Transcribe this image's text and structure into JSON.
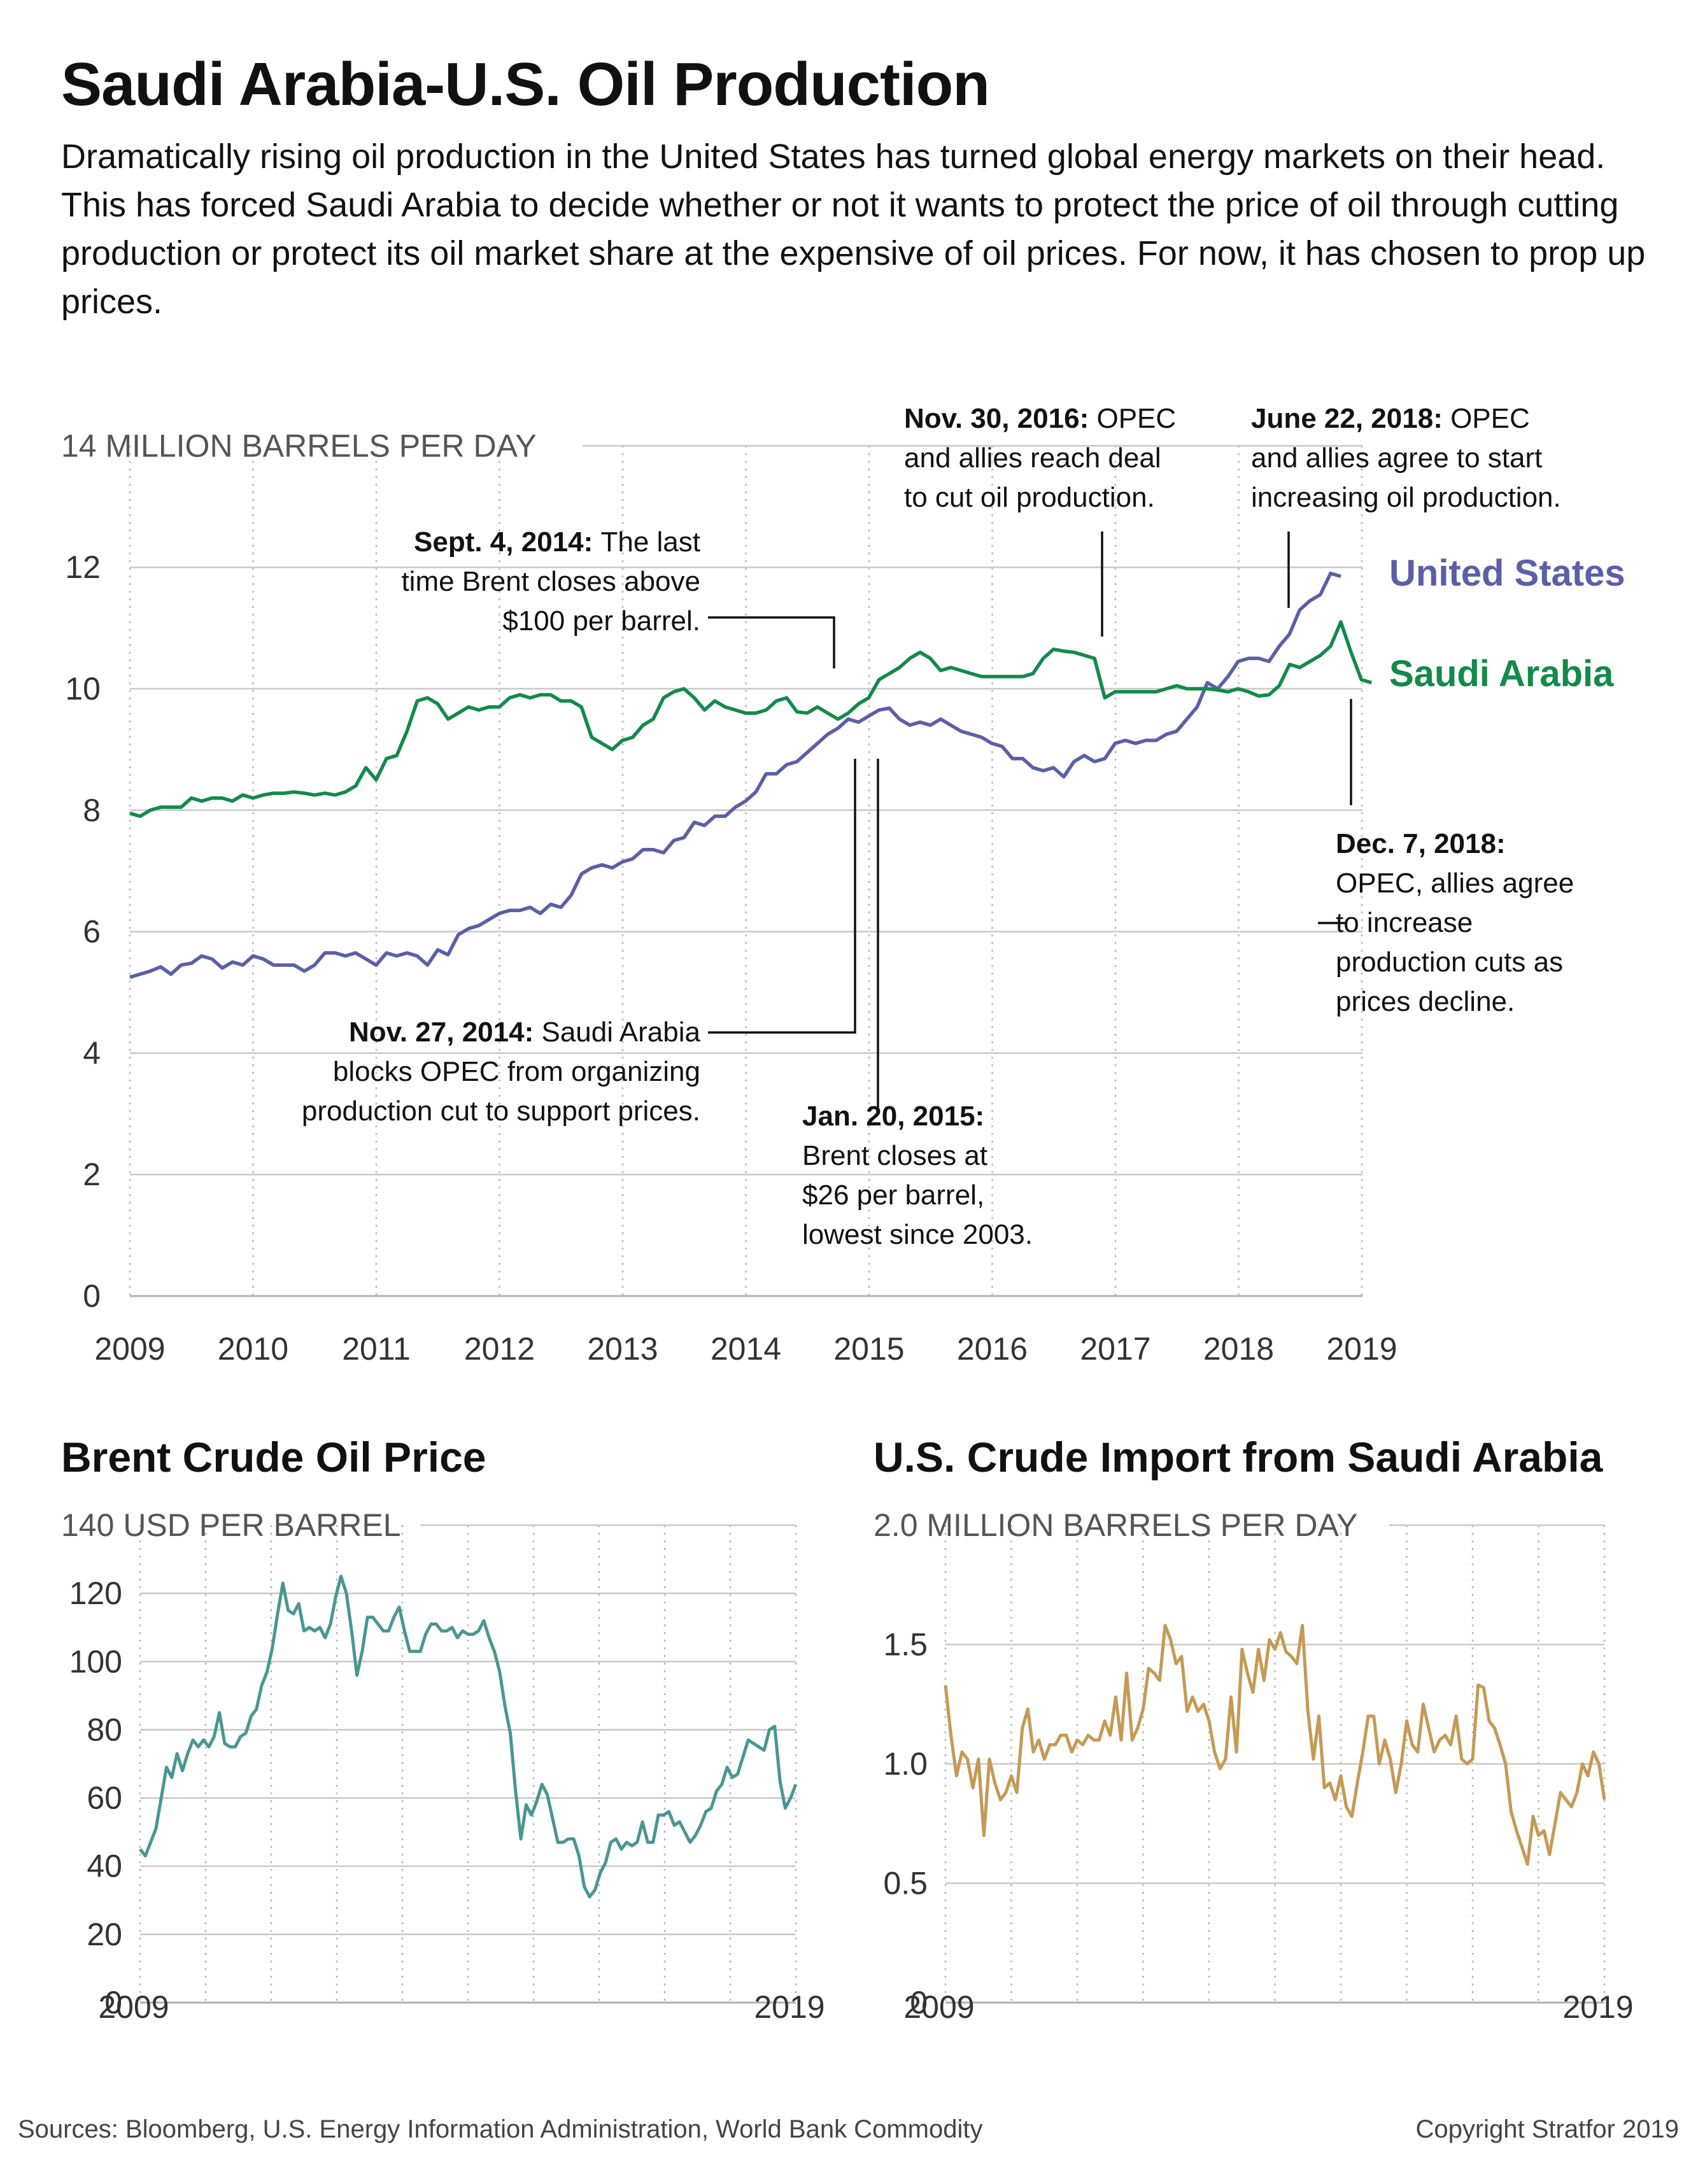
{
  "title": "Saudi Arabia-U.S. Oil Production",
  "subtitle": "Dramatically rising oil production in the United States has turned global energy markets on their head. This has forced Saudi Arabia to decide whether or not it wants to protect the price of oil through cutting production or protect its oil market share at the expensive of oil prices. For now, it has chosen to prop up prices.",
  "colors": {
    "us": "#5a5fa6",
    "saudi": "#138a4a",
    "brent": "#4a9692",
    "imports": "#c49a55"
  },
  "chart_data": [
    {
      "type": "line",
      "unit_label": "14 MILLION BARRELS PER DAY",
      "ylim": [
        0,
        14
      ],
      "yticks": [
        "0",
        "2",
        "4",
        "6",
        "8",
        "10",
        "12"
      ],
      "xlim": [
        2009.0,
        2019.1
      ],
      "xticks": [
        "2009",
        "2010",
        "2011",
        "2012",
        "2013",
        "2014",
        "2015",
        "2016",
        "2017",
        "2018",
        "2019"
      ],
      "grid": "horizontal solid, vertical dotted",
      "series": [
        {
          "name": "United States",
          "x_start": 2009.0,
          "x_step": 0.0833,
          "values": [
            5.25,
            5.3,
            5.35,
            5.42,
            5.3,
            5.45,
            5.48,
            5.6,
            5.55,
            5.4,
            5.5,
            5.45,
            5.6,
            5.55,
            5.45,
            5.45,
            5.45,
            5.35,
            5.45,
            5.65,
            5.65,
            5.6,
            5.65,
            5.55,
            5.45,
            5.65,
            5.6,
            5.65,
            5.6,
            5.45,
            5.7,
            5.62,
            5.95,
            6.05,
            6.1,
            6.2,
            6.3,
            6.35,
            6.35,
            6.4,
            6.3,
            6.45,
            6.4,
            6.6,
            6.95,
            7.05,
            7.1,
            7.05,
            7.15,
            7.2,
            7.35,
            7.35,
            7.3,
            7.5,
            7.55,
            7.8,
            7.75,
            7.9,
            7.9,
            8.05,
            8.15,
            8.3,
            8.6,
            8.6,
            8.75,
            8.8,
            8.95,
            9.1,
            9.25,
            9.35,
            9.5,
            9.45,
            9.55,
            9.65,
            9.68,
            9.5,
            9.4,
            9.45,
            9.4,
            9.5,
            9.4,
            9.3,
            9.25,
            9.2,
            9.1,
            9.05,
            8.85,
            8.85,
            8.7,
            8.65,
            8.7,
            8.55,
            8.8,
            8.9,
            8.8,
            8.85,
            9.1,
            9.15,
            9.1,
            9.15,
            9.15,
            9.25,
            9.3,
            9.5,
            9.7,
            10.1,
            10.0,
            10.2,
            10.45,
            10.5,
            10.5,
            10.45,
            10.7,
            10.9,
            11.3,
            11.45,
            11.55,
            11.9,
            11.85
          ]
        },
        {
          "name": "Saudi Arabia",
          "x_start": 2009.0,
          "x_step": 0.0833,
          "values": [
            7.95,
            7.9,
            8.0,
            8.05,
            8.05,
            8.05,
            8.2,
            8.15,
            8.2,
            8.2,
            8.15,
            8.25,
            8.2,
            8.25,
            8.28,
            8.28,
            8.3,
            8.28,
            8.25,
            8.28,
            8.25,
            8.3,
            8.4,
            8.7,
            8.5,
            8.85,
            8.9,
            9.3,
            9.8,
            9.85,
            9.75,
            9.5,
            9.6,
            9.7,
            9.65,
            9.7,
            9.7,
            9.85,
            9.9,
            9.85,
            9.9,
            9.9,
            9.8,
            9.8,
            9.7,
            9.2,
            9.1,
            9.0,
            9.15,
            9.2,
            9.4,
            9.5,
            9.85,
            9.95,
            10.0,
            9.85,
            9.65,
            9.8,
            9.7,
            9.65,
            9.6,
            9.6,
            9.65,
            9.8,
            9.85,
            9.62,
            9.6,
            9.7,
            9.6,
            9.5,
            9.6,
            9.75,
            9.85,
            10.15,
            10.25,
            10.35,
            10.5,
            10.6,
            10.5,
            10.3,
            10.35,
            10.3,
            10.25,
            10.2,
            10.2,
            10.2,
            10.2,
            10.2,
            10.25,
            10.5,
            10.65,
            10.62,
            10.6,
            10.55,
            10.5,
            9.85,
            9.95,
            9.95,
            9.95,
            9.95,
            9.95,
            10.0,
            10.05,
            10.0,
            10.0,
            10.0,
            9.98,
            9.95,
            10.0,
            9.95,
            9.88,
            9.9,
            10.05,
            10.4,
            10.35,
            10.45,
            10.55,
            10.7,
            11.1,
            10.6,
            10.15,
            10.1
          ]
        }
      ],
      "annotations": [
        {
          "bold": "Sept. 4, 2014:",
          "lines": [
            "The last",
            "time Brent closes above",
            "$100 per barrel."
          ]
        },
        {
          "bold": "Nov. 27, 2014:",
          "lines": [
            "Saudi Arabia",
            "blocks OPEC from organizing",
            "production cut to support prices."
          ]
        },
        {
          "bold": "Jan. 20, 2015:",
          "lines": [
            "Brent closes at",
            "$26 per barrel,",
            "lowest since 2003."
          ]
        },
        {
          "bold": "Nov. 30, 2016:",
          "lines": [
            "OPEC",
            "and allies reach deal",
            "to cut oil production."
          ]
        },
        {
          "bold": "June 22, 2018:",
          "lines": [
            "OPEC",
            "and allies agree to start",
            "increasing oil production."
          ]
        },
        {
          "bold": "Dec. 7, 2018:",
          "lines": [
            "OPEC, allies agree",
            "to increase",
            "production cuts as",
            "prices decline."
          ]
        }
      ]
    },
    {
      "type": "line",
      "title": "Brent Crude Oil Price",
      "unit_label": "140 USD PER BARREL",
      "ylim": [
        0,
        140
      ],
      "yticks": [
        "0",
        "20",
        "40",
        "60",
        "80",
        "100",
        "120"
      ],
      "xticks": [
        "2009",
        "2019"
      ],
      "x_start": 2009.0,
      "x_step": 0.0833,
      "series": [
        {
          "name": "Brent",
          "values": [
            45,
            43,
            47,
            51,
            60,
            69,
            66,
            73,
            68,
            73,
            77,
            75,
            77,
            75,
            78,
            85,
            76,
            75,
            75,
            78,
            79,
            84,
            86,
            93,
            97,
            104,
            114,
            123,
            115,
            114,
            117,
            109,
            110,
            109,
            110,
            107,
            111,
            119,
            125,
            120,
            109,
            96,
            103,
            113,
            113,
            111,
            109,
            109,
            113,
            116,
            109,
            103,
            103,
            103,
            108,
            111,
            111,
            109,
            109,
            110,
            107,
            109,
            108,
            108,
            109,
            112,
            107,
            103,
            97,
            87,
            79,
            62,
            48,
            58,
            55,
            59,
            64,
            61,
            54,
            47,
            47,
            48,
            48,
            43,
            34,
            31,
            33,
            38,
            41,
            47,
            48,
            45,
            47,
            46,
            47,
            53,
            47,
            47,
            55,
            55,
            56,
            52,
            53,
            50,
            47,
            49,
            52,
            56,
            57,
            62,
            64,
            69,
            66,
            67,
            72,
            77,
            76,
            75,
            74,
            80,
            81,
            65,
            57,
            60,
            64
          ]
        }
      ]
    },
    {
      "type": "line",
      "title": "U.S. Crude Import from Saudi Arabia",
      "unit_label": "2.0 MILLION BARRELS PER DAY",
      "ylim": [
        0,
        2.0
      ],
      "yticks": [
        "0",
        "0.5",
        "1.0",
        "1.5"
      ],
      "xticks": [
        "2009",
        "2019"
      ],
      "x_start": 2009.0,
      "x_step": 0.0833,
      "series": [
        {
          "name": "Imports",
          "values": [
            1.33,
            1.12,
            0.95,
            1.05,
            1.02,
            0.9,
            1.02,
            0.7,
            1.02,
            0.92,
            0.85,
            0.88,
            0.95,
            0.88,
            1.15,
            1.23,
            1.05,
            1.1,
            1.02,
            1.08,
            1.08,
            1.12,
            1.12,
            1.05,
            1.1,
            1.08,
            1.12,
            1.1,
            1.1,
            1.18,
            1.12,
            1.28,
            1.1,
            1.38,
            1.1,
            1.15,
            1.23,
            1.4,
            1.38,
            1.35,
            1.58,
            1.52,
            1.42,
            1.45,
            1.22,
            1.28,
            1.22,
            1.25,
            1.18,
            1.05,
            0.98,
            1.02,
            1.28,
            1.05,
            1.48,
            1.38,
            1.3,
            1.48,
            1.35,
            1.52,
            1.48,
            1.55,
            1.47,
            1.45,
            1.42,
            1.58,
            1.22,
            1.02,
            1.2,
            0.9,
            0.92,
            0.85,
            0.95,
            0.82,
            0.78,
            0.92,
            1.05,
            1.2,
            1.2,
            1.0,
            1.1,
            1.02,
            0.88,
            1.0,
            1.18,
            1.08,
            1.05,
            1.25,
            1.15,
            1.05,
            1.1,
            1.12,
            1.08,
            1.2,
            1.02,
            1.0,
            1.02,
            1.33,
            1.32,
            1.18,
            1.15,
            1.08,
            1.0,
            0.8,
            0.72,
            0.65,
            0.58,
            0.78,
            0.7,
            0.72,
            0.62,
            0.75,
            0.88,
            0.85,
            0.82,
            0.88,
            1.0,
            0.95,
            1.05,
            1.0,
            0.85
          ]
        }
      ]
    }
  ],
  "series_labels": {
    "us": "United States",
    "saudi": "Saudi Arabia"
  },
  "footer": {
    "sources": "Sources: Bloomberg, U.S. Energy Information Administration, World Bank Commodity",
    "copyright": "Copyright Stratfor 2019"
  }
}
